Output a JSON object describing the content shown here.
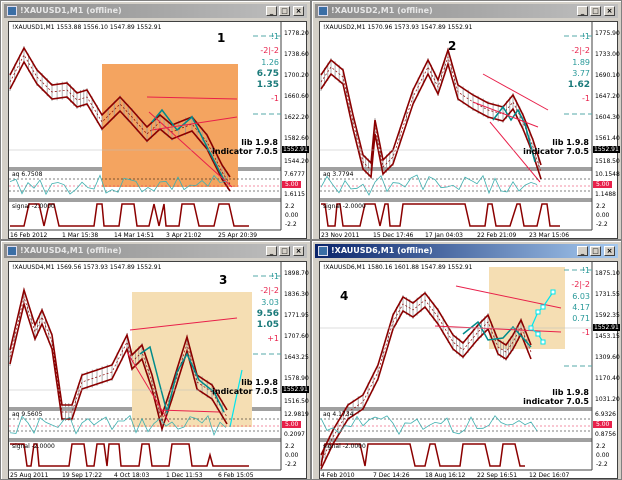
{
  "windows": [
    {
      "title": "!XAUUSD1,M1 (offline)",
      "active": false,
      "header": "!XAUUSD1,M1  1553.88 1556.10 1547.89 1552.91",
      "label": "1",
      "price_ticks": [
        "1778.20",
        "1738.60",
        "1700.20",
        "1660.60",
        "1622.20",
        "1582.60",
        "1544.20"
      ],
      "current_price": "1552.91",
      "levels": [
        "!1",
        "-2|-2",
        "1.26",
        "6.75",
        "1.35",
        "-1"
      ],
      "lib": "lib 1.9.8",
      "indicator": "indicator 7.0.5",
      "aq_label": "aq 6.7508",
      "aq_top": "7.6777",
      "aq_mid": "5.00",
      "aq_bottom": "1.6115",
      "signal_label": "signal -2.0000",
      "signal_ticks": [
        "2.2",
        "0.00",
        "-2.2"
      ],
      "times": [
        "16 Feb 2012",
        "1 Mar 15:38",
        "14 Mar 14:51",
        "3 Apr 21:02",
        "25 Apr 20:39"
      ],
      "shade": "#f4a460"
    },
    {
      "title": "!XAUUSD2,M1 (offline)",
      "active": false,
      "header": "!XAUUSD2,M1  1570.96 1573.93 1547.89 1552.91",
      "label": "2",
      "price_ticks": [
        "1775.90",
        "1733.00",
        "1690.10",
        "1647.20",
        "1604.30",
        "1561.40",
        "1518.50"
      ],
      "current_price": "1552.91",
      "levels": [
        "!1",
        "-2|-2",
        "1.89",
        "3.77",
        "1.62",
        "-1"
      ],
      "lib": "lib 1.9.8",
      "indicator": "indicator 7.0.5",
      "aq_label": "aq 3.7794",
      "aq_top": "10.1548",
      "aq_mid": "5.00",
      "aq_bottom": "1.1488",
      "signal_label": "signal -2.0000",
      "signal_ticks": [
        "2.2",
        "0.00",
        "-2.2"
      ],
      "times": [
        "23 Nov 2011",
        "15 Dec 17:46",
        "17 Jan 04:03",
        "22 Feb 21:09",
        "23 Mar 15:06"
      ],
      "shade": ""
    },
    {
      "title": "!XAUUSD4,M1 (offline)",
      "active": false,
      "header": "!XAUUSD4,M1  1569.56 1573.93 1547.89 1552.91",
      "label": "3",
      "price_ticks": [
        "1898.70",
        "1836.30",
        "1771.95",
        "1707.60",
        "1643.25",
        "1578.90",
        "1516.50"
      ],
      "current_price": "1552.91",
      "levels": [
        "!1",
        "-2|-2",
        "3.03",
        "9.56",
        "1.05",
        "+1"
      ],
      "lib": "lib 1.9.8",
      "indicator": "indicator 7.0.5",
      "aq_label": "aq 9.5605",
      "aq_top": "12.9819",
      "aq_mid": "5.00",
      "aq_bottom": "0.2097",
      "signal_label": "signal -2.0000",
      "signal_ticks": [
        "2.2",
        "0.00",
        "-2.2"
      ],
      "times": [
        "25 Aug 2011",
        "19 Sep 17:22",
        "4 Oct 18:03",
        "1 Dec 11:53",
        "6 Feb 15:05"
      ],
      "shade": "#f5deb3"
    },
    {
      "title": "!XAUUSD6,M1 (offline)",
      "active": true,
      "header": "!XAUUSD6,M1  1580.16 1601.88 1547.89 1552.91",
      "label": "4",
      "price_ticks": [
        "1875.10",
        "1731.55",
        "1592.35",
        "1453.15",
        "1309.60",
        "1170.40",
        "1031.20"
      ],
      "current_price": "1552.91",
      "levels": [
        "!1",
        "-2|-2",
        "6.03",
        "4.17",
        "0.71",
        "-1"
      ],
      "lib": "lib 1.9.8",
      "indicator": "indicator 7.0.5",
      "aq_label": "aq 4.1734",
      "aq_top": "6.9326",
      "aq_mid": "5.00",
      "aq_bottom": "0.8756",
      "signal_label": "signal -2.0000",
      "signal_ticks": [
        "2.2",
        "0.00",
        "-2.2"
      ],
      "times": [
        "4 Feb 2010",
        "7 Dec 14:26",
        "18 Aug 16:12",
        "22 Sep 16:51",
        "12 Dec 16:07"
      ],
      "shade": "#f5deb3"
    }
  ],
  "colors": {
    "band": "#8b0000",
    "teal": "#008b8b",
    "trend": "#e8204a",
    "cyan": "#00e5ee",
    "aq": "#40b0b0"
  }
}
